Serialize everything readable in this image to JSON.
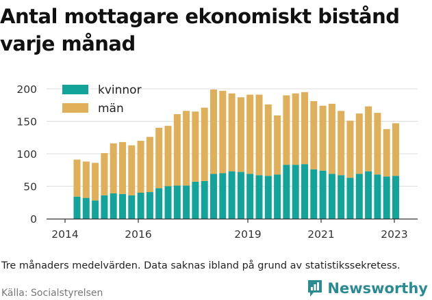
{
  "header": {
    "title_line1": "Antal mottagare ekonomiskt bistånd",
    "title_line2": "varje månad"
  },
  "footer": {
    "note": "Tre månaders medelvärden. Data saknas ibland på grund av statistikssekretess.",
    "source": "Källa: Socialstyrelsen",
    "brand": "Newsworthy"
  },
  "colors": {
    "kvinnor": "#12a39a",
    "man": "#dfaf5a",
    "grid": "#dddddd",
    "axis": "#333333",
    "brand": "#2b8b93"
  },
  "chart_data": {
    "type": "bar",
    "stacked": true,
    "grid": true,
    "legend_position": "top-left",
    "x_ticks": [
      "2014",
      "2016",
      "2019",
      "2021",
      "2023"
    ],
    "y_ticks": [
      0,
      50,
      100,
      150,
      200
    ],
    "ylim": [
      0,
      210
    ],
    "series": [
      {
        "name": "kvinnor",
        "values": [
          34,
          32,
          28,
          36,
          39,
          38,
          36,
          40,
          41,
          47,
          50,
          51,
          51,
          57,
          58,
          69,
          70,
          73,
          72,
          69,
          67,
          66,
          68,
          83,
          83,
          84,
          76,
          74,
          69,
          67,
          63,
          69,
          73,
          68,
          65,
          66
        ]
      },
      {
        "name": "män",
        "values": [
          57,
          56,
          58,
          65,
          77,
          80,
          77,
          80,
          85,
          93,
          93,
          110,
          115,
          108,
          113,
          130,
          127,
          120,
          115,
          122,
          124,
          110,
          91,
          107,
          110,
          111,
          105,
          100,
          108,
          99,
          88,
          93,
          100,
          95,
          73,
          81
        ]
      }
    ]
  }
}
